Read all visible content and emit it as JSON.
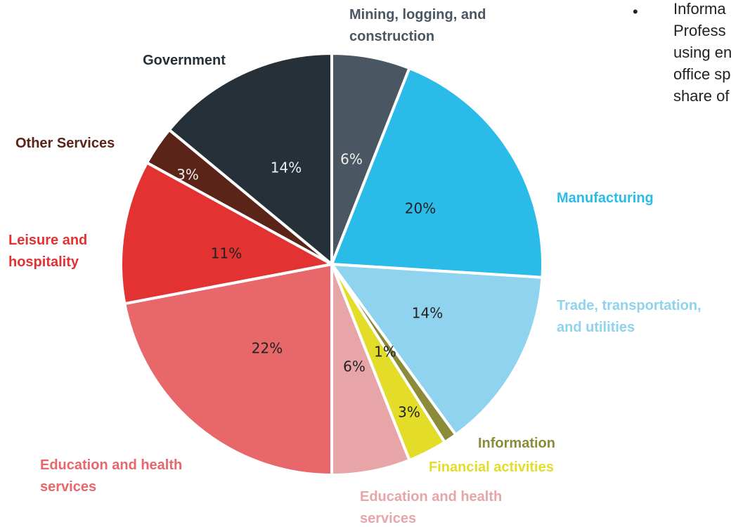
{
  "chart_data": {
    "type": "pie",
    "categories": [
      "Mining, logging, and\nconstruction",
      "Manufacturing",
      "Trade, transportation,\nand utilities",
      "Information",
      "Financial activities",
      "Education and health\nservices",
      "Education and health\nservices",
      "Leisure and\nhospitality",
      "Other Services",
      "Government"
    ],
    "values": [
      6,
      20,
      14,
      1,
      3,
      6,
      22,
      11,
      3,
      14
    ],
    "value_labels": [
      "6%",
      "20%",
      "14%",
      "1%",
      "3%",
      "6%",
      "22%",
      "11%",
      "3%",
      "14%"
    ],
    "colors": [
      "#4a5763",
      "#2bbbe8",
      "#8fd3ee",
      "#8b8b3a",
      "#e3dd2a",
      "#e8a5a8",
      "#e8676a",
      "#e23232",
      "#5a2418",
      "#253038"
    ],
    "annotation": {
      "bullet": "•",
      "lines": [
        "Informa",
        "Profess",
        "using en",
        "office sp",
        "share of"
      ]
    }
  }
}
